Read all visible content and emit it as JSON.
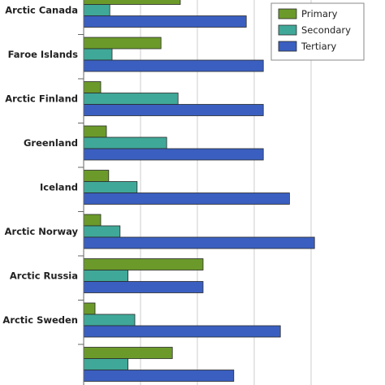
{
  "chart_data": {
    "type": "bar",
    "orientation": "horizontal",
    "categories": [
      "Arctic Canada",
      "Faroe Islands",
      "Arctic Finland",
      "Greenland",
      "Iceland",
      "Arctic Norway",
      "Arctic Russia",
      "Arctic Sweden",
      ""
    ],
    "series": [
      {
        "name": "Primary",
        "color": "#6b9a2a",
        "values": [
          17,
          13.6,
          3,
          4,
          4.4,
          3,
          21,
          2,
          15.6
        ]
      },
      {
        "name": "Secondary",
        "color": "#40a898",
        "values": [
          4.6,
          5,
          16.6,
          14.6,
          9.4,
          6.4,
          7.8,
          9,
          7.8
        ]
      },
      {
        "name": "Tertiary",
        "color": "#3a5fc0",
        "values": [
          28.6,
          31.6,
          31.6,
          31.6,
          36.2,
          40.6,
          21,
          34.6,
          26.4
        ]
      }
    ],
    "xlim": [
      0,
      50
    ],
    "grid": true,
    "legend_position": "top-right",
    "title": "",
    "xlabel": "",
    "ylabel": ""
  }
}
